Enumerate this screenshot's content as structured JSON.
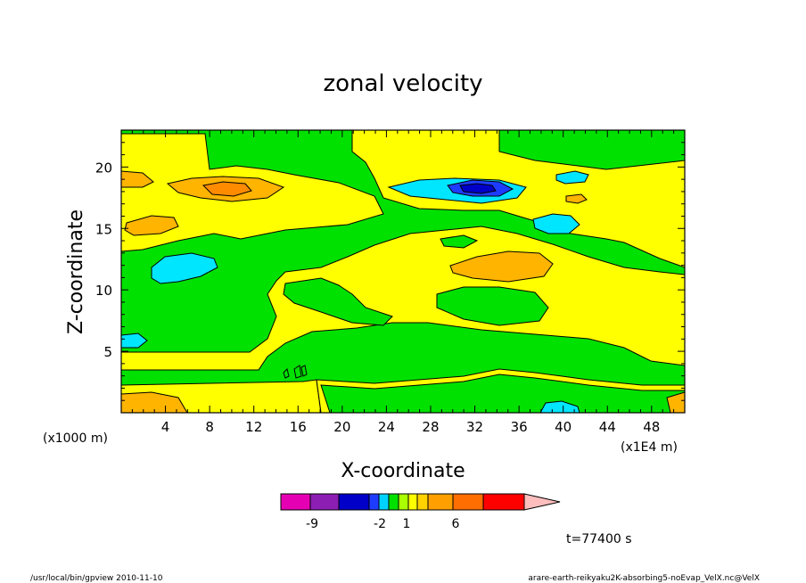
{
  "chart_data": {
    "type": "heatmap",
    "title": "zonal velocity",
    "xlabel": "X-coordinate",
    "ylabel": "Z-coordinate",
    "x_unit_left": "(x1000 m)",
    "x_unit_right": "(x1E4 m)",
    "xlim": [
      0,
      51
    ],
    "ylim": [
      0,
      23
    ],
    "x_ticks": [
      "4",
      "8",
      "12",
      "16",
      "20",
      "24",
      "28",
      "32",
      "36",
      "40",
      "44",
      "48"
    ],
    "y_ticks": [
      "5",
      "10",
      "15",
      "20"
    ],
    "x_tick_values": [
      4,
      8,
      12,
      16,
      20,
      24,
      28,
      32,
      36,
      40,
      44,
      48
    ],
    "y_tick_values": [
      5,
      10,
      15,
      20
    ],
    "time_label": "t=77400 s",
    "colorbar": {
      "labels": [
        "-9",
        "-2",
        "1",
        "6"
      ],
      "colors": [
        "#e600b4",
        "#8c1eb4",
        "#0000c8",
        "#1e3cff",
        "#00d2ff",
        "#00e100",
        "#aaff00",
        "#ffff00",
        "#ffd200",
        "#ffa000",
        "#ff6e00",
        "#ff0000",
        "#ff7878",
        "#ffbebe"
      ]
    },
    "levels": {
      "green": "#00e100",
      "yellow": "#ffff00",
      "orange": "#ffb400",
      "dark_orange": "#ff8c00",
      "cyan": "#00e6ff",
      "blue": "#1e3cff",
      "navy": "#0000c8"
    }
  },
  "footer": {
    "left": "/usr/local/bin/gpview   2010-11-10",
    "right": "arare-earth-reikyaku2K-absorbing5-noEvap_VelX.nc@VelX"
  }
}
